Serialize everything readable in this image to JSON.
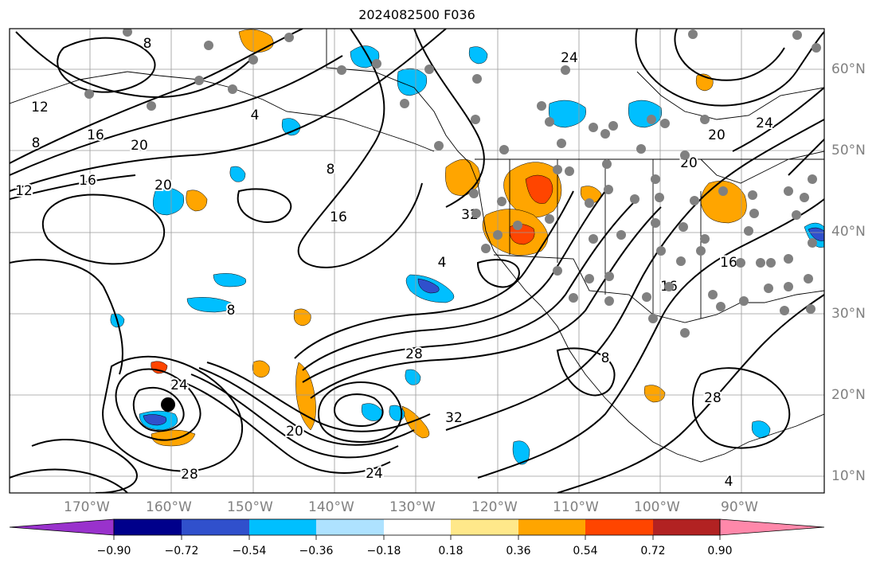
{
  "title": "2024082500 F036",
  "latitude_labels": [
    "60°N",
    "50°N",
    "40°N",
    "30°N",
    "20°N",
    "10°N"
  ],
  "longitude_labels": [
    "170°W",
    "160°W",
    "150°W",
    "140°W",
    "130°W",
    "120°W",
    "110°W",
    "100°W",
    "90°W"
  ],
  "colorbar": {
    "tick_labels": [
      "−0.90",
      "−0.72",
      "−0.54",
      "−0.36",
      "−0.18",
      "0.18",
      "0.36",
      "0.54",
      "0.72",
      "0.90"
    ],
    "colors": [
      "#9932cc",
      "#00008b",
      "#3050cc",
      "#00bfff",
      "#aee2ff",
      "#ffffff",
      "#ffe88a",
      "#ffa500",
      "#ff4500",
      "#b22222",
      "#ff88aa"
    ]
  },
  "contour_labels": [
    "8",
    "12",
    "16",
    "20",
    "4",
    "8",
    "12",
    "16",
    "20",
    "24",
    "28",
    "32",
    "4",
    "8",
    "16",
    "24",
    "20",
    "28",
    "24",
    "32",
    "8",
    "20",
    "24",
    "28",
    "16",
    "4",
    "8",
    "16",
    "20"
  ],
  "station_color": "#808080"
}
